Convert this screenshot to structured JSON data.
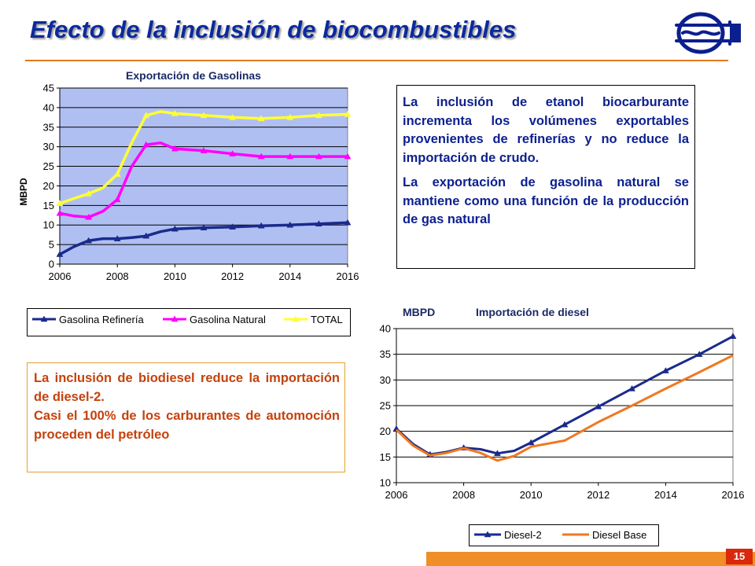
{
  "header": {
    "title": "Efecto de la inclusión  de biocombustibles",
    "accent_color": "#E07A1E",
    "title_color": "#0C2A9C",
    "logo_icon": "pipeline-logo-icon"
  },
  "text_boxes": {
    "etanol": [
      "La inclusión de etanol biocarburante incrementa los volúmenes exportables provenientes de refinerías y no reduce la importación de crudo.",
      "La exportación de gasolina natural se mantiene como una función de la producción de gas natural"
    ],
    "biodiesel": [
      "La inclusión de biodiesel  reduce la importación de diesel-2.",
      "Casi el 100% de los carburantes de automoción proceden del petróleo"
    ]
  },
  "footer": {
    "page_number": "15"
  },
  "chart_data": [
    {
      "type": "line",
      "title": "Exportación de Gasolinas",
      "ylabel": "MBPD",
      "xlabel": "",
      "xlim": [
        2006,
        2016
      ],
      "ylim": [
        0,
        45
      ],
      "x_ticks": [
        "2006",
        "2008",
        "2010",
        "2012",
        "2014",
        "2016"
      ],
      "y_ticks": [
        "0",
        "5",
        "10",
        "15",
        "20",
        "25",
        "30",
        "35",
        "40",
        "45"
      ],
      "grid": true,
      "plot_background": "#B0BFF2",
      "legend_position": "bottom",
      "x": [
        2006,
        2006.5,
        2007,
        2007.5,
        2008,
        2008.5,
        2009,
        2009.5,
        2010,
        2011,
        2012,
        2013,
        2014,
        2015,
        2016
      ],
      "series": [
        {
          "name": "Gasolina Refinería",
          "color": "#1A2A8C",
          "marker": "triangle",
          "values": [
            2.5,
            4.5,
            6,
            6.5,
            6.5,
            6.8,
            7.2,
            8.3,
            9,
            9.3,
            9.5,
            9.8,
            10,
            10.3,
            10.6
          ]
        },
        {
          "name": "Gasolina Natural",
          "color": "#F0F",
          "marker": "triangle",
          "values": [
            13,
            12.3,
            12,
            13.5,
            16.5,
            25,
            30.5,
            31,
            29.5,
            29,
            28.2,
            27.5,
            27.5,
            27.5,
            27.5
          ]
        },
        {
          "name": "TOTAL",
          "color": "#FFFF33",
          "marker": "triangle",
          "values": [
            15.5,
            16.8,
            18,
            19.5,
            23,
            31,
            38,
            39,
            38.5,
            38,
            37.5,
            37.2,
            37.5,
            38,
            38.3
          ]
        }
      ]
    },
    {
      "type": "line",
      "title": "Importación de diesel",
      "ylabel": "MBPD",
      "xlabel": "",
      "xlim": [
        2006,
        2016
      ],
      "ylim": [
        10,
        40
      ],
      "x_ticks": [
        "2006",
        "2008",
        "2010",
        "2012",
        "2014",
        "2016"
      ],
      "y_ticks": [
        "10",
        "15",
        "20",
        "25",
        "30",
        "35",
        "40"
      ],
      "grid": true,
      "plot_background": "#FFFFFF",
      "legend_position": "bottom",
      "x": [
        2006,
        2006.5,
        2007,
        2007.5,
        2008,
        2008.5,
        2009,
        2009.5,
        2010,
        2011,
        2012,
        2013,
        2014,
        2015,
        2016
      ],
      "series": [
        {
          "name": "Diesel-2",
          "color": "#1A2A8C",
          "marker": "triangle",
          "values": [
            20.5,
            17.5,
            15.5,
            16,
            16.8,
            16.5,
            15.7,
            16.2,
            17.8,
            21.3,
            24.8,
            28.3,
            31.8,
            35,
            38.5
          ]
        },
        {
          "name": "Diesel Base",
          "color": "#F07820",
          "marker": "none",
          "values": [
            20.3,
            17.2,
            15.3,
            15.8,
            16.7,
            15.8,
            14.3,
            15.2,
            17,
            18.2,
            21.8,
            25,
            28.3,
            31.5,
            34.8
          ]
        }
      ]
    }
  ]
}
